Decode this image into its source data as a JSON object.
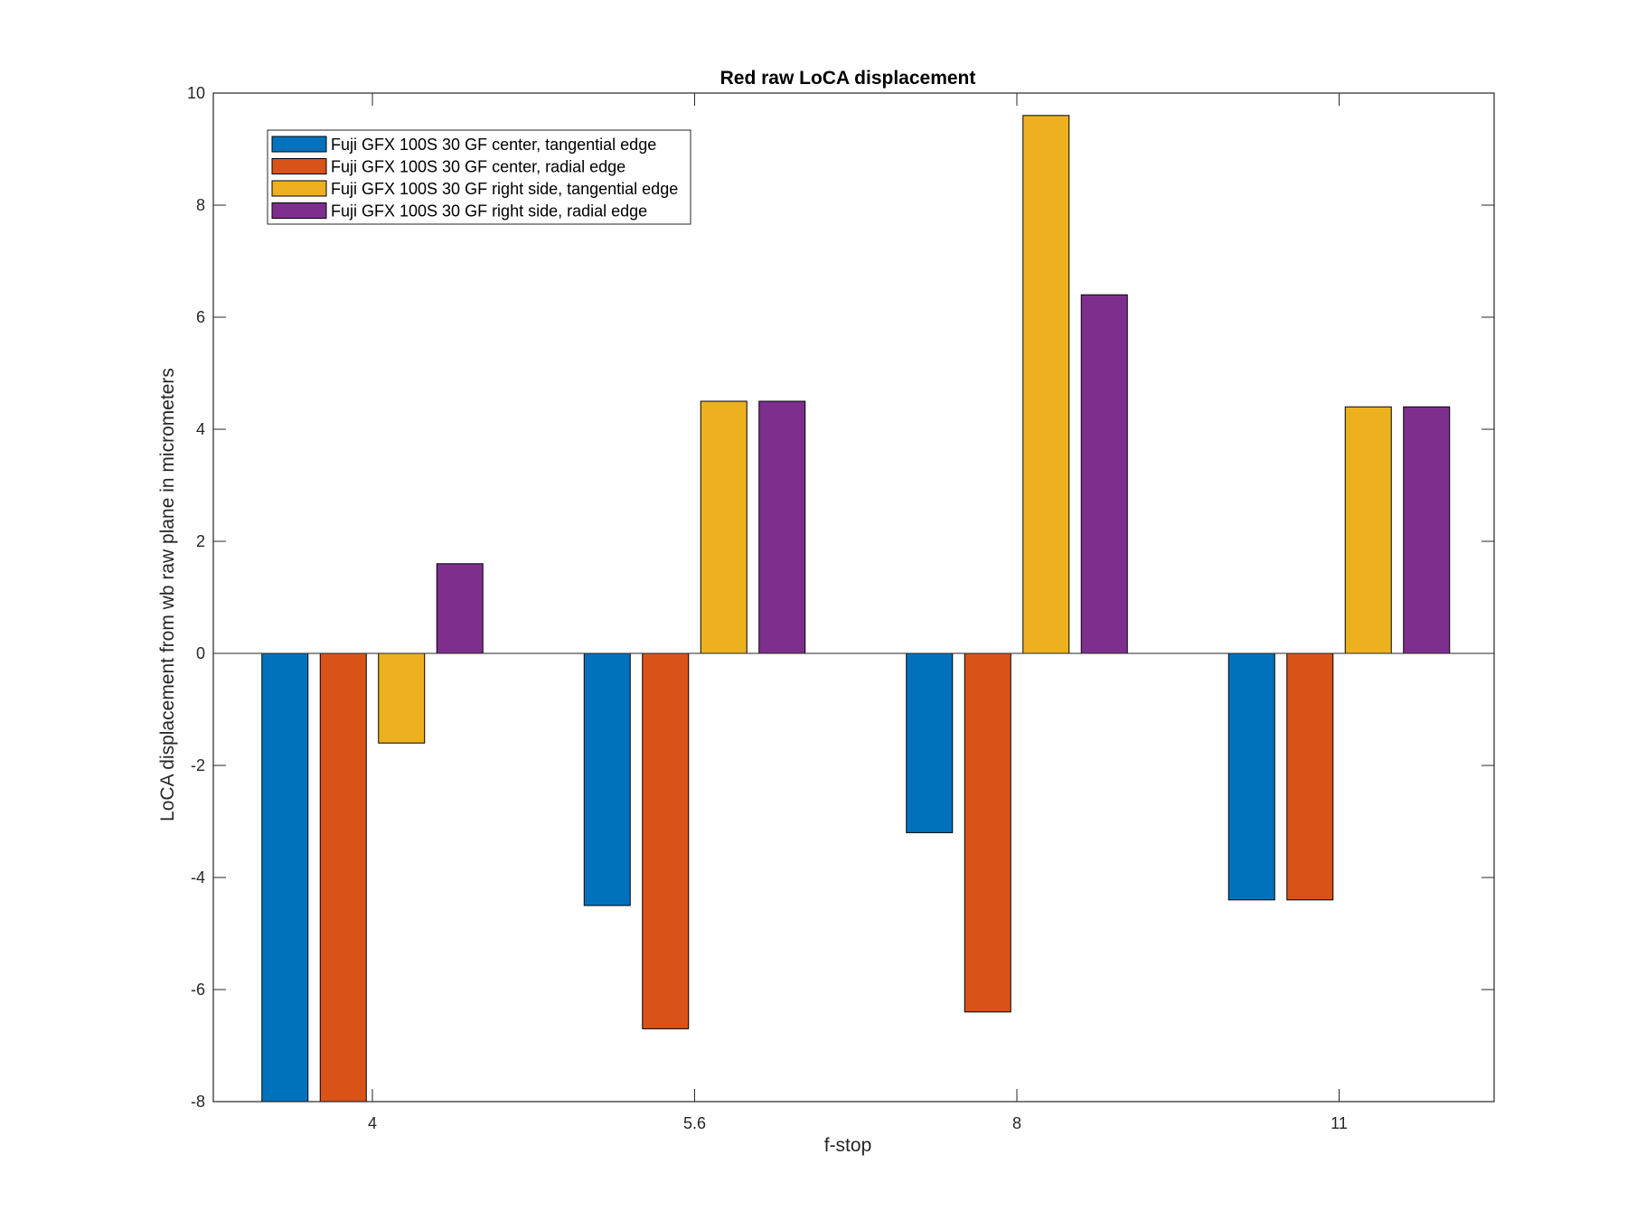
{
  "chart_data": {
    "type": "bar",
    "title": "Red raw  LoCA displacement",
    "xlabel": "f-stop",
    "ylabel": "LoCA displacement from wb raw plane in micrometers",
    "categories": [
      "4",
      "5.6",
      "8",
      "11"
    ],
    "ylim": [
      -8,
      10
    ],
    "yticks": [
      -8,
      -6,
      -4,
      -2,
      0,
      2,
      4,
      6,
      8,
      10
    ],
    "grid": false,
    "legend_position": "top-left",
    "series": [
      {
        "name": "Fuji GFX 100S 30 GF center, tangential edge",
        "color": "#0072BD",
        "values": [
          -8,
          -4.5,
          -3.2,
          -4.4
        ]
      },
      {
        "name": "Fuji GFX 100S 30 GF center, radial edge",
        "color": "#D95319",
        "values": [
          -8,
          -6.7,
          -6.4,
          -4.4
        ]
      },
      {
        "name": "Fuji GFX 100S 30 GF right side, tangential edge",
        "color": "#EDB120",
        "values": [
          -1.6,
          4.5,
          9.6,
          4.4
        ]
      },
      {
        "name": "Fuji GFX 100S 30 GF right side, radial edge",
        "color": "#7E2F8E",
        "values": [
          1.6,
          4.5,
          6.4,
          4.4
        ]
      }
    ]
  }
}
